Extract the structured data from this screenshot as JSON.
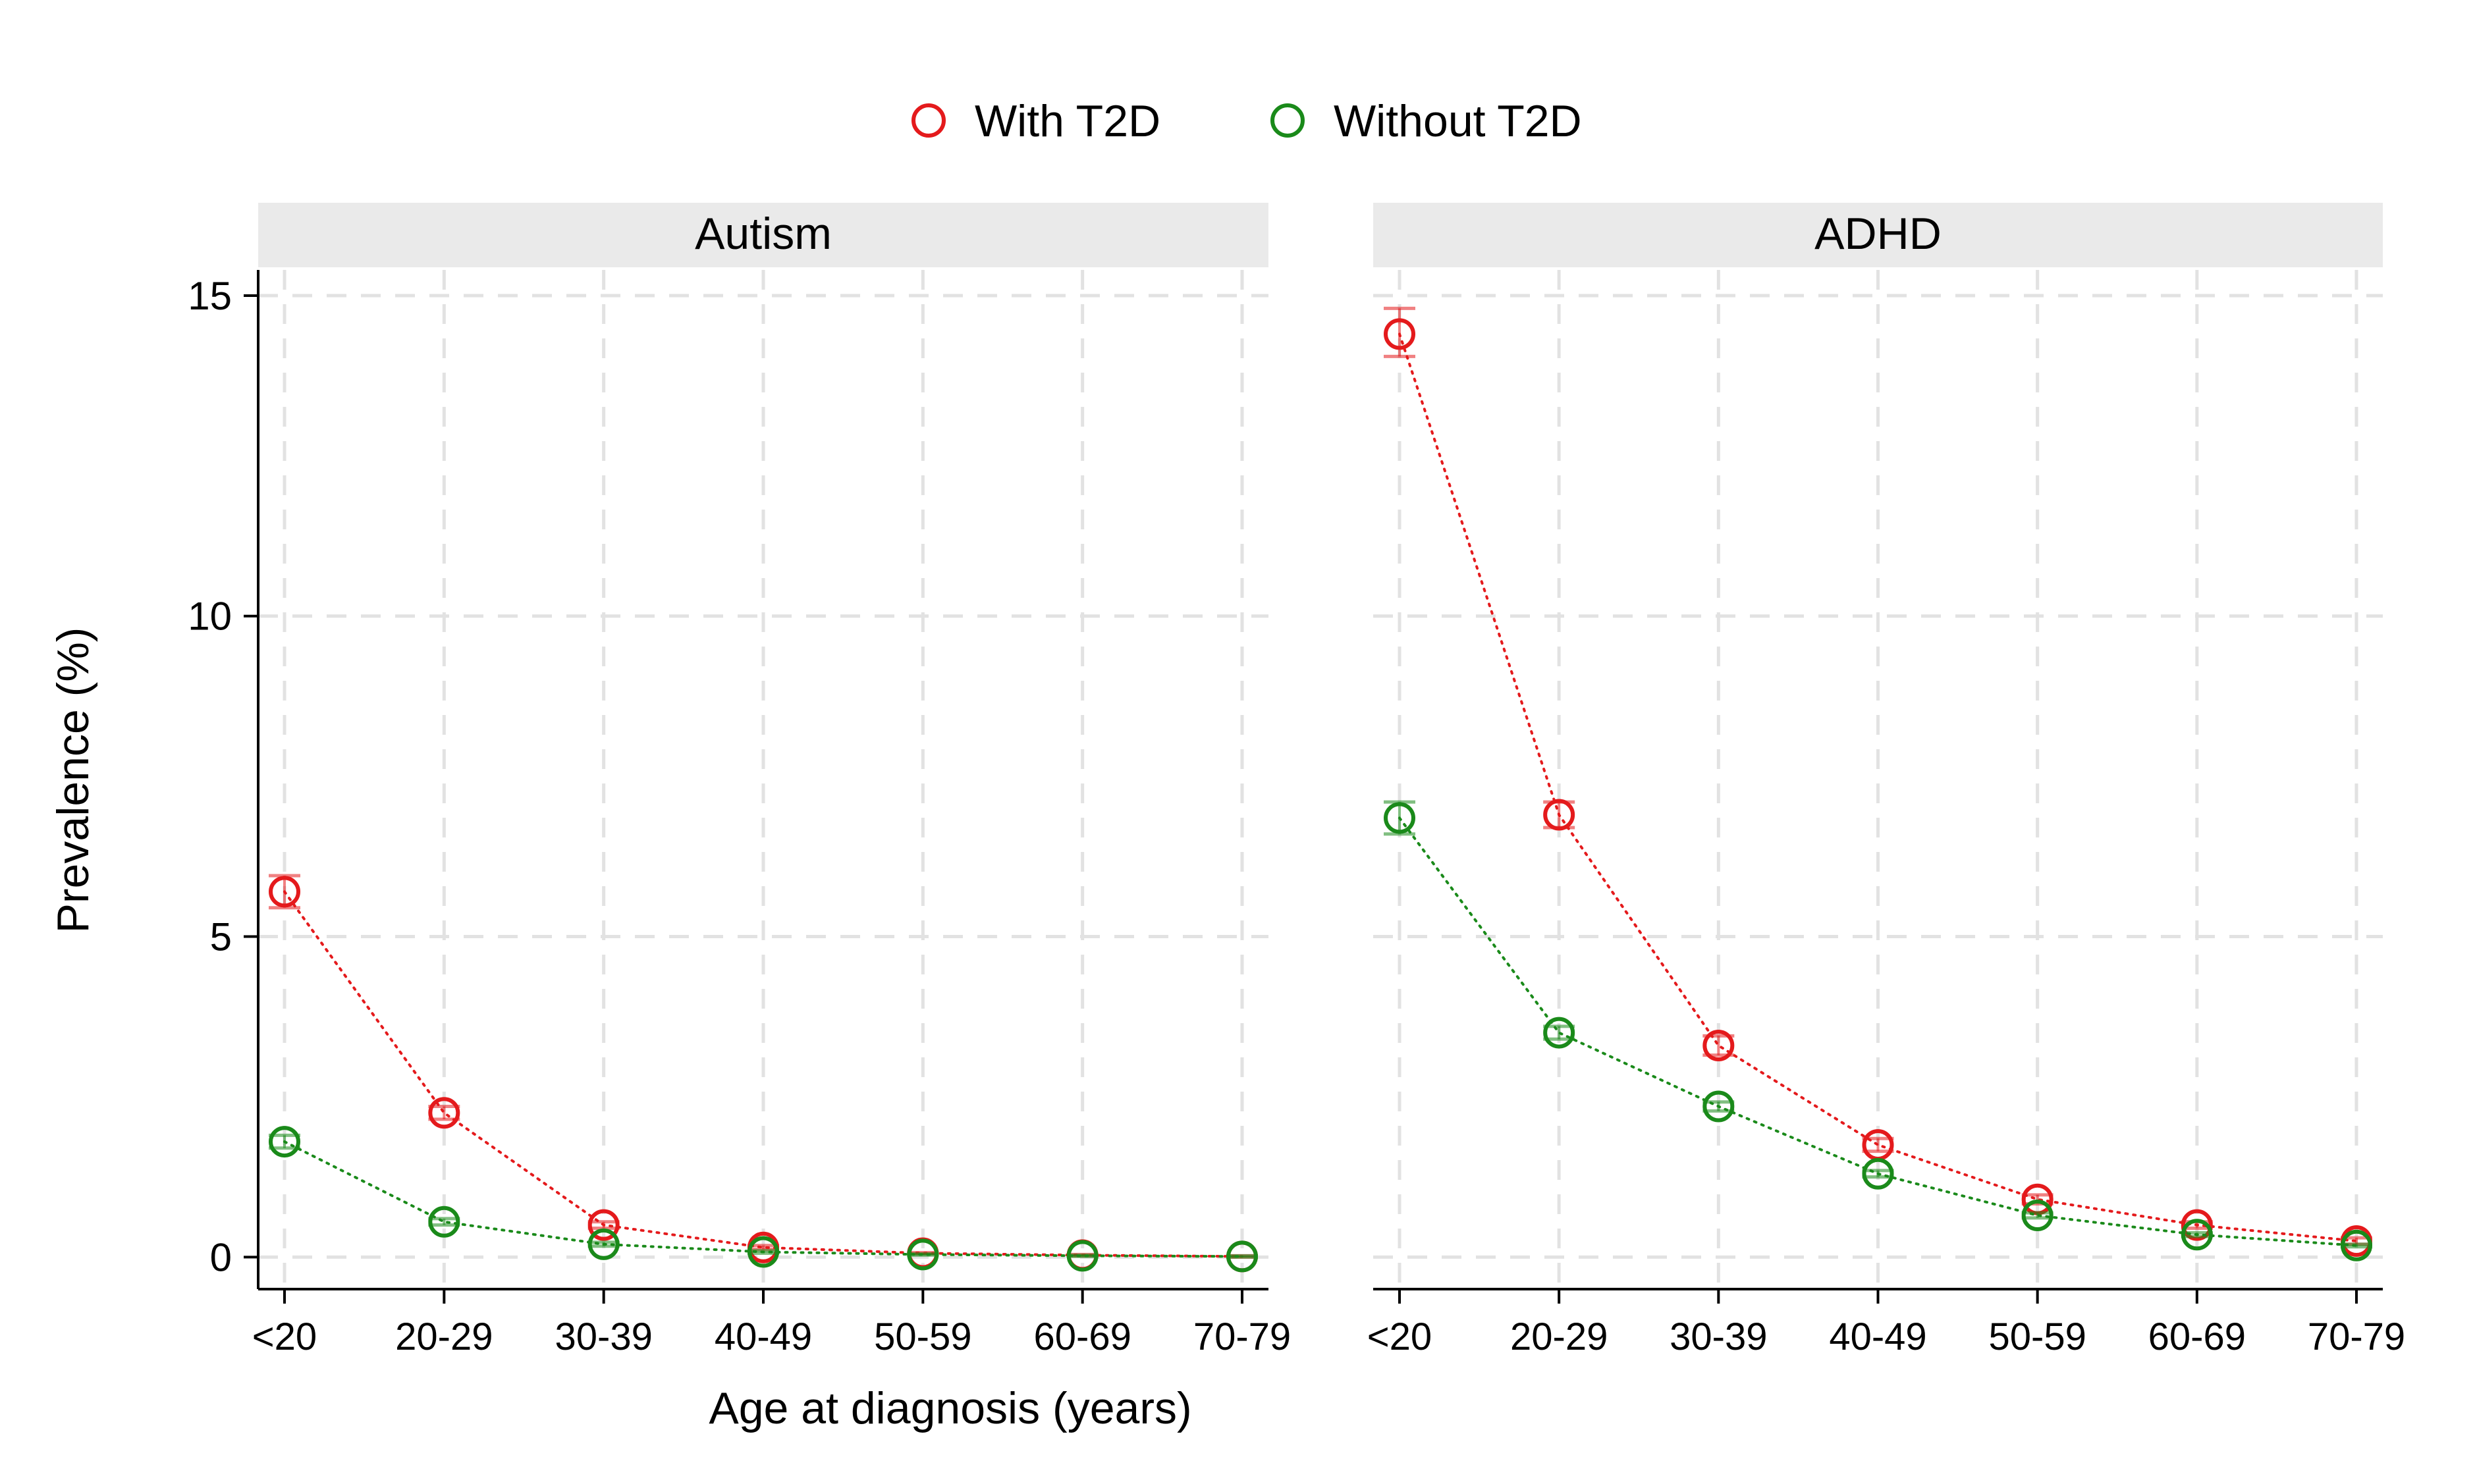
{
  "figure": {
    "xlabel": "Age at diagnosis (years)",
    "ylabel": "Prevalence (%)"
  },
  "legend": {
    "placement": "top-center",
    "items": [
      {
        "label": "With T2D",
        "color": "#e41a1c"
      },
      {
        "label": "Without T2D",
        "color": "#1a8a1a"
      }
    ]
  },
  "chart_data": [
    {
      "type": "scatter",
      "panel_title": "Autism",
      "categories": [
        "<20",
        "20-29",
        "30-39",
        "40-49",
        "50-59",
        "60-69",
        "70-79"
      ],
      "ylim": [
        -0.5,
        15.4
      ],
      "yticks": [
        0,
        5,
        10,
        15
      ],
      "grid": true,
      "series": [
        {
          "name": "With T2D",
          "color": "#e41a1c",
          "values": [
            5.7,
            2.25,
            0.5,
            0.15,
            0.06,
            0.03,
            0.01
          ],
          "ci_low": [
            5.45,
            2.15,
            0.45,
            0.12,
            0.05,
            0.02,
            0.0
          ],
          "ci_high": [
            5.95,
            2.35,
            0.55,
            0.18,
            0.07,
            0.04,
            0.02
          ]
        },
        {
          "name": "Without T2D",
          "color": "#1a8a1a",
          "values": [
            1.8,
            0.55,
            0.2,
            0.08,
            0.04,
            0.02,
            0.01
          ],
          "ci_low": [
            1.7,
            0.5,
            0.17,
            0.06,
            0.03,
            0.01,
            0.0
          ],
          "ci_high": [
            1.9,
            0.6,
            0.23,
            0.1,
            0.05,
            0.03,
            0.02
          ]
        }
      ]
    },
    {
      "type": "scatter",
      "panel_title": "ADHD",
      "categories": [
        "<20",
        "20-29",
        "30-39",
        "40-49",
        "50-59",
        "60-69",
        "70-79"
      ],
      "ylim": [
        -0.5,
        15.4
      ],
      "yticks": [
        0,
        5,
        10,
        15
      ],
      "grid": true,
      "series": [
        {
          "name": "With T2D",
          "color": "#e41a1c",
          "values": [
            14.4,
            6.9,
            3.3,
            1.75,
            0.9,
            0.5,
            0.25
          ],
          "ci_low": [
            14.05,
            6.7,
            3.15,
            1.65,
            0.83,
            0.45,
            0.2
          ],
          "ci_high": [
            14.8,
            7.1,
            3.45,
            1.85,
            0.97,
            0.55,
            0.3
          ]
        },
        {
          "name": "Without T2D",
          "color": "#1a8a1a",
          "values": [
            6.85,
            3.5,
            2.35,
            1.3,
            0.65,
            0.35,
            0.18
          ],
          "ci_low": [
            6.6,
            3.4,
            2.28,
            1.25,
            0.61,
            0.32,
            0.16
          ],
          "ci_high": [
            7.1,
            3.6,
            2.42,
            1.35,
            0.69,
            0.38,
            0.2
          ]
        }
      ]
    }
  ]
}
